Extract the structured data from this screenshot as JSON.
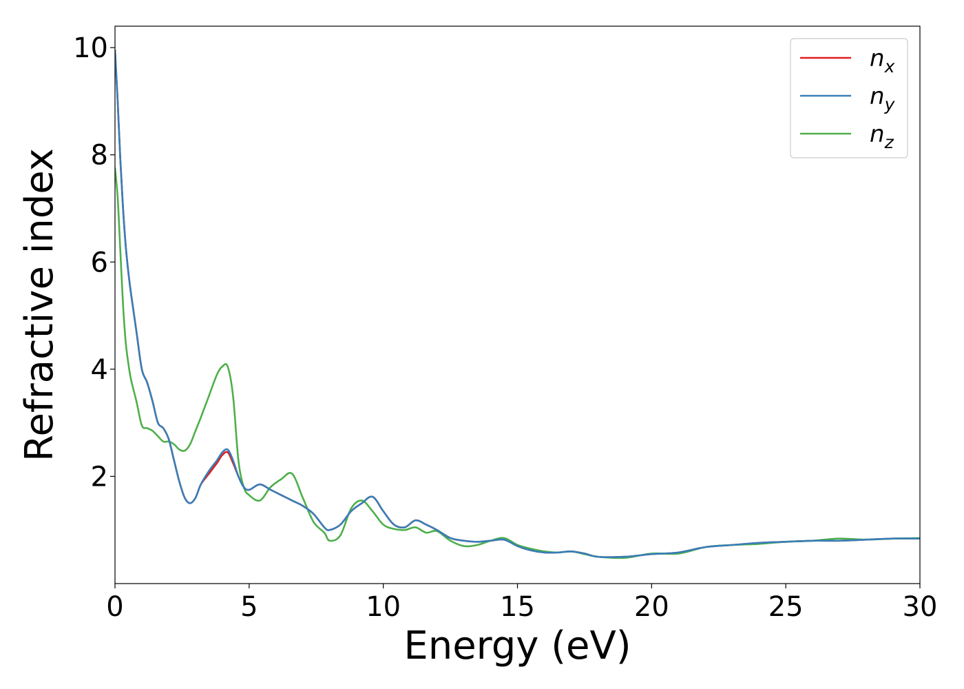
{
  "chart_data": {
    "type": "line",
    "title": "",
    "xlabel": "Energy (eV)",
    "ylabel": "Refractive index",
    "xlim": [
      0,
      30
    ],
    "ylim": [
      0,
      10.4
    ],
    "xticks": [
      0,
      5,
      10,
      15,
      20,
      25,
      30
    ],
    "yticks": [
      2,
      4,
      6,
      8,
      10
    ],
    "grid": false,
    "legend_position": "top-right",
    "series": [
      {
        "name": "n",
        "subscript": "x",
        "color": "#e41a1c",
        "x": [
          0,
          0.1,
          0.2,
          0.3,
          0.4,
          0.5,
          0.6,
          0.8,
          1.0,
          1.2,
          1.4,
          1.6,
          1.8,
          2.0,
          2.2,
          2.4,
          2.6,
          2.8,
          3.0,
          3.2,
          3.5,
          3.8,
          4.0,
          4.2,
          4.4,
          4.6,
          4.8,
          5.0,
          5.4,
          5.8,
          6.2,
          6.6,
          7.0,
          7.4,
          7.8,
          8.0,
          8.4,
          8.8,
          9.2,
          9.6,
          10.0,
          10.4,
          10.8,
          11.2,
          11.6,
          12.0,
          12.5,
          13.0,
          13.5,
          14.0,
          14.5,
          15.0,
          15.5,
          16.0,
          16.5,
          17.0,
          17.5,
          18.0,
          19.0,
          20.0,
          21.0,
          22.0,
          23.0,
          24.0,
          25.0,
          26.0,
          27.0,
          28.0,
          29.0,
          30.0
        ],
        "y": [
          9.95,
          9.0,
          7.9,
          7.0,
          6.3,
          5.8,
          5.4,
          4.7,
          4.0,
          3.75,
          3.4,
          3.0,
          2.9,
          2.7,
          2.3,
          1.9,
          1.6,
          1.5,
          1.6,
          1.85,
          2.05,
          2.25,
          2.4,
          2.45,
          2.25,
          2.0,
          1.8,
          1.75,
          1.85,
          1.75,
          1.65,
          1.55,
          1.45,
          1.3,
          1.05,
          1.0,
          1.1,
          1.35,
          1.5,
          1.62,
          1.35,
          1.1,
          1.05,
          1.18,
          1.1,
          1.0,
          0.85,
          0.8,
          0.78,
          0.8,
          0.82,
          0.7,
          0.62,
          0.58,
          0.58,
          0.6,
          0.56,
          0.5,
          0.5,
          0.55,
          0.58,
          0.68,
          0.72,
          0.76,
          0.78,
          0.8,
          0.8,
          0.82,
          0.84,
          0.84
        ]
      },
      {
        "name": "n",
        "subscript": "y",
        "color": "#377eb8",
        "x": [
          0,
          0.1,
          0.2,
          0.3,
          0.4,
          0.5,
          0.6,
          0.8,
          1.0,
          1.2,
          1.4,
          1.6,
          1.8,
          2.0,
          2.2,
          2.4,
          2.6,
          2.8,
          3.0,
          3.2,
          3.5,
          3.8,
          4.0,
          4.2,
          4.4,
          4.6,
          4.8,
          5.0,
          5.4,
          5.8,
          6.2,
          6.6,
          7.0,
          7.4,
          7.8,
          8.0,
          8.4,
          8.8,
          9.2,
          9.6,
          10.0,
          10.4,
          10.8,
          11.2,
          11.6,
          12.0,
          12.5,
          13.0,
          13.5,
          14.0,
          14.5,
          15.0,
          15.5,
          16.0,
          16.5,
          17.0,
          17.5,
          18.0,
          19.0,
          20.0,
          21.0,
          22.0,
          23.0,
          24.0,
          25.0,
          26.0,
          27.0,
          28.0,
          29.0,
          30.0
        ],
        "y": [
          9.95,
          9.0,
          7.9,
          7.0,
          6.3,
          5.8,
          5.4,
          4.7,
          4.0,
          3.75,
          3.4,
          3.0,
          2.9,
          2.7,
          2.3,
          1.9,
          1.6,
          1.5,
          1.6,
          1.85,
          2.1,
          2.3,
          2.45,
          2.5,
          2.3,
          2.0,
          1.8,
          1.75,
          1.85,
          1.75,
          1.65,
          1.55,
          1.45,
          1.3,
          1.05,
          1.0,
          1.1,
          1.35,
          1.5,
          1.62,
          1.35,
          1.1,
          1.05,
          1.18,
          1.1,
          1.0,
          0.85,
          0.8,
          0.78,
          0.8,
          0.82,
          0.7,
          0.62,
          0.58,
          0.58,
          0.6,
          0.56,
          0.5,
          0.5,
          0.55,
          0.58,
          0.68,
          0.72,
          0.76,
          0.78,
          0.8,
          0.8,
          0.82,
          0.84,
          0.84
        ]
      },
      {
        "name": "n",
        "subscript": "z",
        "color": "#4daf4a",
        "x": [
          0,
          0.1,
          0.2,
          0.3,
          0.4,
          0.5,
          0.6,
          0.8,
          1.0,
          1.2,
          1.4,
          1.6,
          1.8,
          2.0,
          2.2,
          2.4,
          2.6,
          2.8,
          3.0,
          3.2,
          3.5,
          3.8,
          4.0,
          4.2,
          4.4,
          4.6,
          4.8,
          5.0,
          5.4,
          5.8,
          6.2,
          6.6,
          7.0,
          7.4,
          7.8,
          8.0,
          8.4,
          8.8,
          9.2,
          9.6,
          10.0,
          10.4,
          10.8,
          11.2,
          11.6,
          12.0,
          12.5,
          13.0,
          13.5,
          14.0,
          14.5,
          15.0,
          15.5,
          16.0,
          16.5,
          17.0,
          17.5,
          18.0,
          19.0,
          20.0,
          21.0,
          22.0,
          23.0,
          24.0,
          25.0,
          26.0,
          27.0,
          28.0,
          29.0,
          30.0
        ],
        "y": [
          7.75,
          7.2,
          6.2,
          5.2,
          4.5,
          4.1,
          3.8,
          3.4,
          2.95,
          2.9,
          2.85,
          2.75,
          2.65,
          2.65,
          2.6,
          2.5,
          2.48,
          2.6,
          2.85,
          3.1,
          3.5,
          3.9,
          4.05,
          4.05,
          3.5,
          2.3,
          1.8,
          1.65,
          1.55,
          1.8,
          1.95,
          2.05,
          1.6,
          1.15,
          0.95,
          0.8,
          0.9,
          1.4,
          1.55,
          1.35,
          1.1,
          1.02,
          1.0,
          1.05,
          0.95,
          0.98,
          0.8,
          0.7,
          0.72,
          0.8,
          0.85,
          0.72,
          0.65,
          0.6,
          0.58,
          0.6,
          0.55,
          0.5,
          0.48,
          0.56,
          0.56,
          0.68,
          0.72,
          0.74,
          0.78,
          0.8,
          0.84,
          0.82,
          0.84,
          0.85
        ]
      }
    ]
  }
}
